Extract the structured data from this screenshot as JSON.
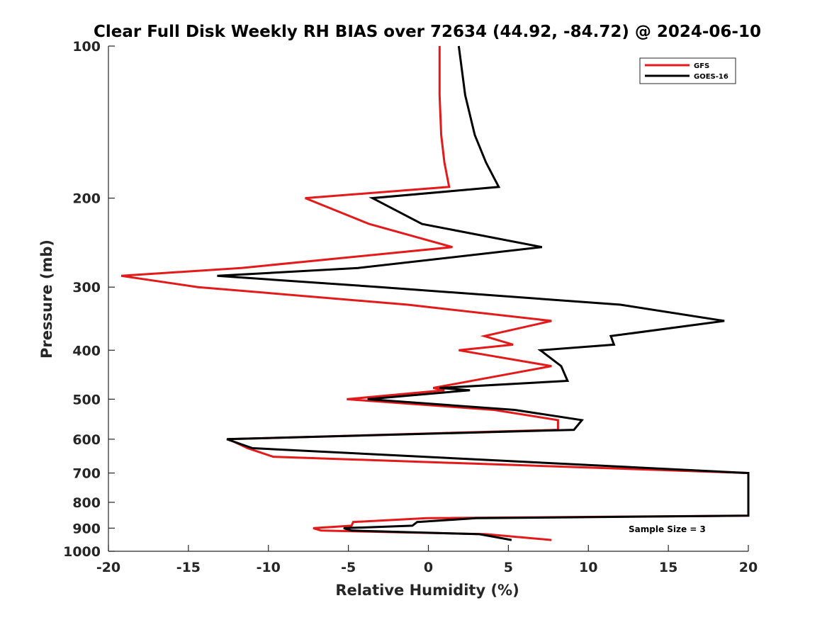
{
  "chart_data": {
    "type": "line",
    "title": "Clear Full Disk Weekly RH BIAS over 72634 (44.92, -84.72) @ 2024-06-10",
    "xlabel": "Relative Humidity (%)",
    "ylabel": "Pressure (mb)",
    "xlim": [
      -20,
      20
    ],
    "ylim": [
      1000,
      100
    ],
    "yscale": "log",
    "xticks": [
      "-20",
      "-15",
      "-10",
      "-5",
      "0",
      "5",
      "10",
      "15",
      "20"
    ],
    "yticks": [
      "100",
      "200",
      "300",
      "400",
      "500",
      "600",
      "700",
      "800",
      "900",
      "1000"
    ],
    "grid": false,
    "legend_position": "top-right",
    "annotation": "Sample Size = 3",
    "series": [
      {
        "name": "GFS",
        "color": "#e41a1a",
        "points": [
          [
            0.7,
            100
          ],
          [
            0.7,
            125
          ],
          [
            0.8,
            150
          ],
          [
            1.0,
            170
          ],
          [
            1.3,
            190
          ],
          [
            -7.7,
            200
          ],
          [
            -3.7,
            225
          ],
          [
            1.5,
            250
          ],
          [
            -11.7,
            275
          ],
          [
            -19.2,
            285
          ],
          [
            -14.4,
            300
          ],
          [
            -1.3,
            325
          ],
          [
            7.7,
            350
          ],
          [
            3.5,
            375
          ],
          [
            5.3,
            390
          ],
          [
            1.9,
            400
          ],
          [
            7.7,
            430
          ],
          [
            0.3,
            475
          ],
          [
            1.0,
            480
          ],
          [
            -5.1,
            500
          ],
          [
            4.1,
            525
          ],
          [
            8.1,
            550
          ],
          [
            8.1,
            575
          ],
          [
            -12.5,
            600
          ],
          [
            -11.3,
            625
          ],
          [
            -9.7,
            650
          ],
          [
            20.0,
            700
          ],
          [
            20.0,
            850
          ],
          [
            -0.1,
            860
          ],
          [
            -4.7,
            875
          ],
          [
            -4.8,
            890
          ],
          [
            -7.2,
            900
          ],
          [
            -6.7,
            910
          ],
          [
            3.6,
            925
          ],
          [
            7.7,
            950
          ]
        ]
      },
      {
        "name": "GOES-16",
        "color": "#000000",
        "points": [
          [
            1.9,
            100
          ],
          [
            2.3,
            125
          ],
          [
            2.9,
            150
          ],
          [
            3.6,
            170
          ],
          [
            4.4,
            190
          ],
          [
            -3.5,
            200
          ],
          [
            -0.4,
            225
          ],
          [
            7.1,
            250
          ],
          [
            -4.4,
            275
          ],
          [
            -13.2,
            285
          ],
          [
            -3.0,
            300
          ],
          [
            12.0,
            325
          ],
          [
            18.5,
            350
          ],
          [
            11.4,
            375
          ],
          [
            11.6,
            390
          ],
          [
            7.0,
            400
          ],
          [
            8.3,
            430
          ],
          [
            8.7,
            460
          ],
          [
            0.7,
            475
          ],
          [
            2.6,
            480
          ],
          [
            -3.8,
            500
          ],
          [
            5.4,
            525
          ],
          [
            9.6,
            550
          ],
          [
            9.1,
            575
          ],
          [
            -12.6,
            600
          ],
          [
            -11.0,
            625
          ],
          [
            20.0,
            700
          ],
          [
            20.0,
            850
          ],
          [
            3.0,
            860
          ],
          [
            -0.7,
            875
          ],
          [
            -1.0,
            890
          ],
          [
            -5.3,
            900
          ],
          [
            -4.8,
            910
          ],
          [
            3.2,
            925
          ],
          [
            5.2,
            950
          ]
        ]
      }
    ]
  }
}
